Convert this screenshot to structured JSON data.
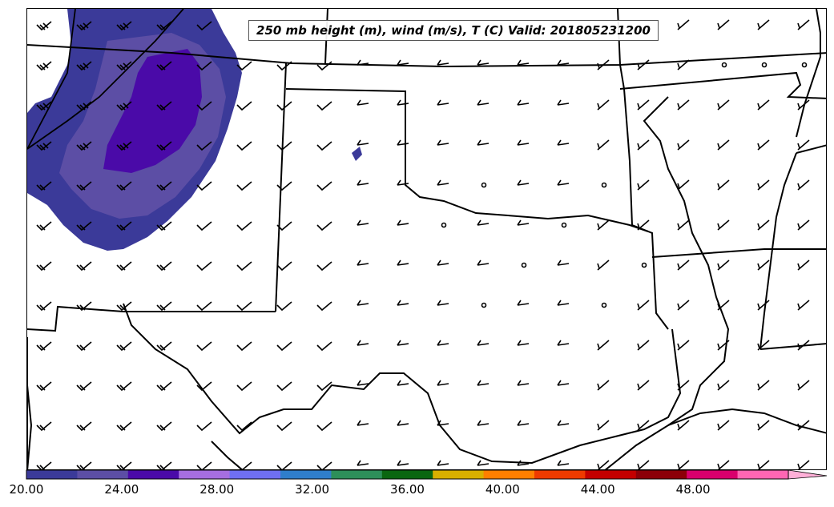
{
  "title": "250 mb height (m), wind (m/s), T (C) Valid: 201805231200",
  "colorbar": {
    "ticks": [
      "20.00",
      "24.00",
      "28.00",
      "32.00",
      "36.00",
      "40.00",
      "44.00",
      "48.00"
    ],
    "min": 20,
    "max": 52,
    "colors": [
      "#3b3a99",
      "#5c4ea5",
      "#4a0aa8",
      "#a66ee0",
      "#6f6ff2",
      "#2f7ecb",
      "#2d8f5a",
      "#0a6610",
      "#d9b000",
      "#ff7f00",
      "#ee3a00",
      "#c40000",
      "#8c0008",
      "#d9006d",
      "#ff66b3"
    ],
    "extend_color": "#ffb0d8"
  },
  "colors": {
    "shade_low": "#3b3a99",
    "shade_mid": "#5c4ea5",
    "shade_high": "#4a0aa8",
    "boundary": "#000000"
  }
}
